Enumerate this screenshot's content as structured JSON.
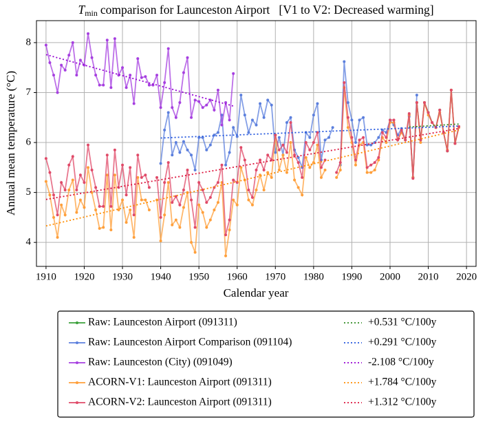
{
  "chart_data": {
    "type": "line",
    "title_symbol": "T",
    "title_subscript": "min",
    "title": "comparison for Launceston Airport   [V1 to V2: Decreased warming]",
    "xlabel": "Calendar year",
    "ylabel": "Annual mean temperature (°C)",
    "xlim": [
      1907.5,
      2022.5
    ],
    "ylim": [
      3.52,
      8.44
    ],
    "xticks": [
      1910,
      1920,
      1930,
      1940,
      1950,
      1960,
      1970,
      1980,
      1990,
      2000,
      2010,
      2020
    ],
    "yticks": [
      4,
      5,
      6,
      7,
      8
    ],
    "grid": true,
    "legend": "lower center",
    "series": [
      {
        "name": "Raw: Launceston Airport (091311)",
        "color": "#3aa03a",
        "x": [
          2005,
          2006,
          2007,
          2008,
          2009,
          2010,
          2011,
          2012,
          2013,
          2014,
          2015,
          2016,
          2017,
          2018
        ],
        "values": [
          6.55,
          5.3,
          6.8,
          6.05,
          6.8,
          6.6,
          6.4,
          6.3,
          6.65,
          6.2,
          5.83,
          7.05,
          5.98,
          6.32
        ]
      },
      {
        "name": "Raw: Launceston Airport Comparison (091104)",
        "color": "#5b7fdd",
        "x": [
          1940,
          1941,
          1942,
          1943,
          1944,
          1945,
          1946,
          1947,
          1948,
          1949,
          1950,
          1951,
          1952,
          1953,
          1954,
          1955,
          1956,
          1957,
          1958,
          1959,
          1960,
          1961,
          1962,
          1963,
          1964,
          1965,
          1966,
          1967,
          1968,
          1969,
          1970,
          1971,
          1972,
          1973,
          1974,
          1975,
          1976,
          1977,
          1978,
          1979,
          1980,
          1981,
          1982,
          1983,
          1984,
          1985,
          1986,
          1987,
          1988,
          1989,
          1990,
          1991,
          1992,
          1993,
          1994,
          1995,
          1996,
          1997,
          1998,
          1999,
          2000,
          2001,
          2002,
          2003,
          2004,
          2005,
          2006,
          2007
        ],
        "values": [
          5.58,
          6.25,
          6.6,
          5.75,
          6.0,
          5.8,
          6.02,
          5.85,
          5.75,
          5.45,
          6.1,
          6.1,
          5.85,
          5.95,
          6.15,
          6.2,
          6.55,
          5.55,
          5.8,
          6.3,
          6.12,
          6.95,
          6.55,
          6.2,
          6.45,
          6.35,
          6.78,
          6.5,
          6.85,
          6.75,
          5.8,
          6.1,
          5.75,
          6.4,
          6.5,
          5.85,
          5.7,
          5.5,
          6.2,
          6.1,
          6.55,
          6.78,
          5.65,
          6.05,
          6.1,
          6.3,
          null,
          5.55,
          7.62,
          6.8,
          6.45,
          6.0,
          6.45,
          6.5,
          5.95,
          5.95,
          6.0,
          6.1,
          6.25,
          6.2,
          6.45,
          6.35,
          6.15,
          6.28,
          6.05,
          6.52,
          5.3,
          6.95
        ]
      },
      {
        "name": "Raw: Launceston (City) (091049)",
        "color": "#a63fe0",
        "x": [
          1910,
          1911,
          1912,
          1913,
          1914,
          1915,
          1916,
          1917,
          1918,
          1919,
          1920,
          1921,
          1922,
          1923,
          1924,
          1925,
          1926,
          1927,
          1928,
          1929,
          1930,
          1931,
          1932,
          1933,
          1934,
          1935,
          1936,
          1937,
          1938,
          1939,
          1940,
          1941,
          1942,
          1943,
          1944,
          1945,
          1946,
          1947,
          1948,
          1949,
          1950,
          1951,
          1952,
          1953,
          1954,
          1955,
          1956,
          1957,
          1958,
          1959
        ],
        "values": [
          7.95,
          7.6,
          7.35,
          7.0,
          7.55,
          7.45,
          7.75,
          8.0,
          7.35,
          7.65,
          7.55,
          8.18,
          7.7,
          7.35,
          7.15,
          7.15,
          8.05,
          7.1,
          8.08,
          7.35,
          7.5,
          7.1,
          7.35,
          6.78,
          7.68,
          7.3,
          7.32,
          7.15,
          7.15,
          7.35,
          6.7,
          7.2,
          7.88,
          6.7,
          6.5,
          6.8,
          7.4,
          7.7,
          6.5,
          6.85,
          6.82,
          6.7,
          6.75,
          6.85,
          6.65,
          7.05,
          6.35,
          6.8,
          6.45,
          7.38
        ]
      },
      {
        "name": "ACORN-V1: Launceston Airport (091311)",
        "color": "#ff9f3a",
        "x": [
          1910,
          1911,
          1912,
          1913,
          1914,
          1915,
          1916,
          1917,
          1918,
          1919,
          1920,
          1921,
          1922,
          1923,
          1924,
          1925,
          1926,
          1927,
          1928,
          1929,
          1930,
          1931,
          1932,
          1933,
          1934,
          1935,
          1936,
          1937,
          1938,
          1939,
          1940,
          1941,
          1942,
          1943,
          1944,
          1945,
          1946,
          1947,
          1948,
          1949,
          1950,
          1951,
          1952,
          1953,
          1954,
          1955,
          1956,
          1957,
          1958,
          1959,
          1960,
          1961,
          1962,
          1963,
          1964,
          1965,
          1966,
          1967,
          1968,
          1969,
          1970,
          1971,
          1972,
          1973,
          1974,
          1975,
          1976,
          1977,
          1978,
          1979,
          1980,
          1981,
          1982,
          1983,
          1984,
          1985,
          1986,
          1987,
          1988,
          1989,
          1990,
          1991,
          1992,
          1993,
          1994,
          1995,
          1996,
          1997,
          1998,
          1999,
          2000,
          2001,
          2002,
          2003,
          2004,
          2005,
          2006,
          2007,
          2008,
          2009,
          2010,
          2011,
          2012,
          2013,
          2014,
          2015,
          2016,
          2017,
          2018
        ],
        "values": [
          5.22,
          4.95,
          4.5,
          4.1,
          4.75,
          4.55,
          5.05,
          5.25,
          4.6,
          4.85,
          4.7,
          5.5,
          5.0,
          4.65,
          4.28,
          4.3,
          5.35,
          4.25,
          5.35,
          4.65,
          4.85,
          4.4,
          4.65,
          4.1,
          5.3,
          4.85,
          4.85,
          4.65,
          null,
          4.85,
          4.03,
          4.55,
          5.2,
          4.35,
          4.45,
          4.3,
          4.7,
          5.0,
          4.0,
          3.8,
          4.75,
          4.6,
          4.3,
          4.45,
          4.65,
          4.8,
          5.2,
          3.73,
          4.25,
          4.85,
          4.75,
          5.5,
          5.25,
          4.85,
          4.75,
          5.05,
          5.35,
          5.05,
          5.4,
          5.3,
          6.15,
          5.45,
          5.75,
          5.4,
          6.0,
          5.25,
          5.1,
          4.95,
          5.7,
          5.5,
          5.6,
          5.95,
          5.3,
          5.45,
          null,
          null,
          5.3,
          5.45,
          7.1,
          6.3,
          6.0,
          5.55,
          5.95,
          6.0,
          5.4,
          5.4,
          5.45,
          5.65,
          6.1,
          6.0,
          6.4,
          6.4,
          6.05,
          6.2,
          6.05,
          6.55,
          5.3,
          6.8,
          6.0,
          6.8,
          6.55,
          6.4,
          6.3,
          6.6,
          6.2,
          5.85,
          7.05,
          5.98,
          6.3
        ]
      },
      {
        "name": "ACORN-V2: Launceston Airport (091311)",
        "color": "#e04a68",
        "x": [
          1910,
          1911,
          1912,
          1913,
          1914,
          1915,
          1916,
          1917,
          1918,
          1919,
          1920,
          1921,
          1922,
          1923,
          1924,
          1925,
          1926,
          1927,
          1928,
          1929,
          1930,
          1931,
          1932,
          1933,
          1934,
          1935,
          1936,
          1937,
          1938,
          1939,
          1940,
          1941,
          1942,
          1943,
          1944,
          1945,
          1946,
          1947,
          1948,
          1949,
          1950,
          1951,
          1952,
          1953,
          1954,
          1955,
          1956,
          1957,
          1958,
          1959,
          1960,
          1961,
          1962,
          1963,
          1964,
          1965,
          1966,
          1967,
          1968,
          1969,
          1970,
          1971,
          1972,
          1973,
          1974,
          1975,
          1976,
          1977,
          1978,
          1979,
          1980,
          1981,
          1982,
          1983,
          1984,
          1985,
          1986,
          1987,
          1988,
          1989,
          1990,
          1991,
          1992,
          1993,
          1994,
          1995,
          1996,
          1997,
          1998,
          1999,
          2000,
          2001,
          2002,
          2003,
          2004,
          2005,
          2006,
          2007,
          2008,
          2009,
          2010,
          2011,
          2012,
          2013,
          2014,
          2015,
          2016,
          2017,
          2018
        ],
        "values": [
          5.68,
          5.4,
          4.95,
          4.55,
          5.2,
          5.05,
          5.55,
          5.72,
          5.05,
          5.35,
          5.2,
          5.95,
          5.45,
          5.1,
          4.72,
          4.72,
          5.75,
          4.72,
          5.85,
          5.1,
          5.55,
          4.95,
          5.5,
          4.55,
          5.75,
          5.3,
          5.35,
          5.1,
          null,
          5.3,
          4.5,
          5.2,
          5.6,
          4.8,
          4.92,
          4.75,
          5.05,
          5.45,
          4.85,
          4.3,
          5.2,
          5.05,
          4.8,
          4.9,
          5.1,
          5.2,
          5.55,
          4.15,
          4.45,
          5.25,
          5.2,
          5.9,
          5.65,
          5.05,
          4.9,
          5.45,
          5.65,
          5.45,
          5.75,
          5.65,
          6.15,
          5.85,
          5.95,
          5.8,
          6.4,
          5.75,
          5.6,
          5.3,
          6.0,
          5.85,
          6.0,
          6.2,
          5.5,
          5.65,
          null,
          null,
          5.4,
          5.6,
          7.2,
          6.5,
          6.1,
          5.65,
          6.05,
          6.1,
          5.5,
          5.55,
          5.6,
          5.7,
          6.2,
          6.1,
          6.45,
          6.45,
          6.05,
          6.25,
          6.05,
          6.58,
          5.28,
          6.8,
          6.05,
          6.8,
          6.6,
          6.4,
          6.3,
          6.65,
          6.2,
          5.83,
          7.05,
          5.98,
          6.32
        ]
      }
    ],
    "trends": [
      {
        "name": "+0.531 °C/100y",
        "color": "#2e8b22",
        "x": [
          2005,
          2018
        ],
        "values": [
          6.31,
          6.37
        ]
      },
      {
        "name": "+0.291 °C/100y",
        "color": "#2255dd",
        "x": [
          1940,
          2018
        ],
        "values": [
          6.09,
          6.33
        ]
      },
      {
        "name": "-2.108 °C/100y",
        "color": "#9400d3",
        "x": [
          1910,
          1959
        ],
        "values": [
          7.76,
          6.73
        ]
      },
      {
        "name": "+1.784 °C/100y",
        "color": "#ff8c00",
        "x": [
          1910,
          2018
        ],
        "values": [
          4.33,
          6.25
        ]
      },
      {
        "name": "+1.312 °C/100y",
        "color": "#dc143c",
        "x": [
          1910,
          2018
        ],
        "values": [
          4.86,
          6.28
        ]
      }
    ]
  }
}
